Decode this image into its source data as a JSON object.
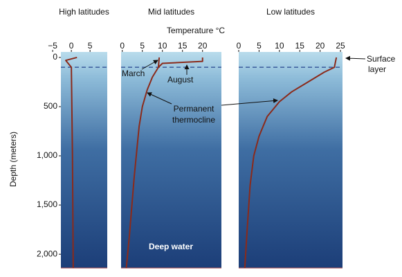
{
  "chart_data": [
    {
      "type": "line",
      "title": "High latitudes",
      "y_label": "Depth (meters)",
      "xlim": [
        -2.8,
        9.6
      ],
      "xticks": [
        {
          "value": -5,
          "label": "−5"
        },
        0,
        5
      ],
      "ylim": [
        2140,
        -56
      ],
      "yticks": [
        0,
        500,
        {
          "value": 1000,
          "label": "1,000"
        },
        {
          "value": 1500,
          "label": "1,500"
        },
        {
          "value": 2000,
          "label": "2,000"
        }
      ],
      "reference_depth": 100,
      "series": [
        {
          "color": "#8b2a1a",
          "x": [
            1.5,
            -1.5,
            0,
            0.3,
            0.5
          ],
          "values": [
            0,
            30,
            100,
            1000,
            2140
          ]
        }
      ]
    },
    {
      "type": "line",
      "title": "Mid latitudes",
      "x_label": "Temperature °C",
      "xlim": [
        -0.3,
        24.7
      ],
      "xticks": [
        0,
        5,
        10,
        15,
        20
      ],
      "ylim": [
        2140,
        -56
      ],
      "reference_depth": 100,
      "annotations": [
        "Permanent",
        "thermocline",
        "Deep water"
      ],
      "series": [
        {
          "name": "March",
          "color": "#8b2a1a",
          "x": [
            9.2,
            9,
            7.5,
            6.2,
            5,
            4.2,
            3,
            1.8,
            1
          ],
          "values": [
            0,
            100,
            200,
            330,
            500,
            700,
            1200,
            1800,
            2140
          ]
        },
        {
          "name": "August",
          "color": "#8b2a1a",
          "x": [
            20,
            20,
            10,
            9
          ],
          "values": [
            0,
            40,
            60,
            100
          ]
        }
      ]
    },
    {
      "type": "line",
      "title": "Low latitudes",
      "xlim": [
        0,
        25.5
      ],
      "xticks": [
        0,
        5,
        10,
        15,
        20,
        25
      ],
      "ylim": [
        2140,
        -56
      ],
      "reference_depth": 100,
      "annotations": [
        "Surface",
        "layer"
      ],
      "series": [
        {
          "color": "#8b2a1a",
          "x": [
            24,
            23.5,
            21,
            17,
            13,
            10,
            7,
            5,
            3.7,
            2.8,
            2,
            1.5
          ],
          "values": [
            0,
            100,
            150,
            250,
            350,
            450,
            600,
            800,
            1000,
            1300,
            1800,
            2140
          ]
        }
      ]
    }
  ]
}
